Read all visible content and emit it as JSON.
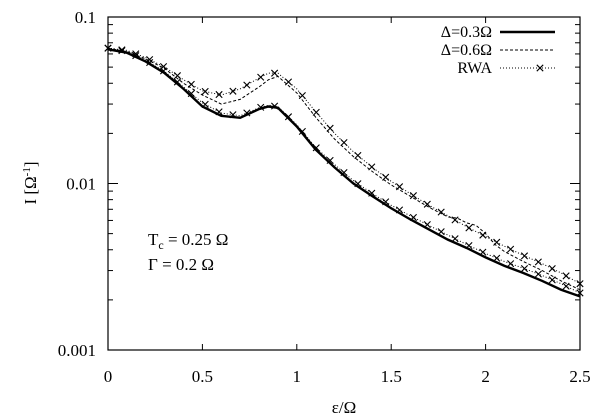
{
  "chart_data": {
    "type": "line",
    "xlabel": "ε/Ω",
    "ylabel_main": "I [Ω",
    "ylabel_sup": "-1",
    "ylabel_close": "]",
    "xlim": [
      0,
      2.5
    ],
    "ylim": [
      0.001,
      0.1
    ],
    "yscale": "log",
    "grid": false,
    "legend_position": "top-right",
    "x_ticks": [
      {
        "value": 0,
        "label": "0"
      },
      {
        "value": 0.5,
        "label": "0.5"
      },
      {
        "value": 1,
        "label": "1"
      },
      {
        "value": 1.5,
        "label": "1.5"
      },
      {
        "value": 2,
        "label": "2"
      },
      {
        "value": 2.5,
        "label": "2.5"
      }
    ],
    "y_ticks": [
      {
        "value": 0.001,
        "label": "0.001"
      },
      {
        "value": 0.01,
        "label": "0.01"
      },
      {
        "value": 0.1,
        "label": "0.1"
      }
    ],
    "annotations": [
      {
        "main": "T",
        "sub": "c",
        "rest": " = 0.25 Ω"
      },
      {
        "main": "Γ",
        "sub": "",
        "rest": " = 0.2 Ω"
      }
    ],
    "legend": [
      {
        "label": "Δ=0.3Ω",
        "style": "solid"
      },
      {
        "label": "Δ=0.6Ω",
        "style": "dashed"
      },
      {
        "label": "RWA",
        "style": "dotted-cross"
      }
    ],
    "series": [
      {
        "name": "Δ=0.3Ω",
        "style": "solid",
        "x": [
          0,
          0.1,
          0.2,
          0.3,
          0.4,
          0.5,
          0.6,
          0.7,
          0.8,
          0.85,
          0.9,
          1.0,
          1.1,
          1.2,
          1.3,
          1.4,
          1.5,
          1.6,
          1.7,
          1.8,
          1.9,
          2.0,
          2.1,
          2.2,
          2.3,
          2.4,
          2.5
        ],
        "y": [
          0.064,
          0.061,
          0.054,
          0.046,
          0.037,
          0.029,
          0.0255,
          0.0248,
          0.028,
          0.029,
          0.0285,
          0.022,
          0.016,
          0.0125,
          0.01,
          0.0084,
          0.0071,
          0.0061,
          0.0053,
          0.0046,
          0.0041,
          0.0036,
          0.0032,
          0.0029,
          0.0026,
          0.0023,
          0.0021
        ]
      },
      {
        "name": "Δ=0.3Ω RWA",
        "style": "dotted-cross",
        "x": [
          0,
          0.1,
          0.2,
          0.3,
          0.4,
          0.5,
          0.6,
          0.7,
          0.8,
          0.85,
          0.9,
          1.0,
          1.1,
          1.2,
          1.3,
          1.4,
          1.5,
          1.6,
          1.7,
          1.8,
          1.9,
          2.0,
          2.1,
          2.2,
          2.3,
          2.4,
          2.5
        ],
        "y": [
          0.065,
          0.062,
          0.055,
          0.047,
          0.038,
          0.0305,
          0.0265,
          0.0255,
          0.0285,
          0.0295,
          0.029,
          0.0225,
          0.0165,
          0.013,
          0.0104,
          0.0087,
          0.0074,
          0.0064,
          0.0056,
          0.0049,
          0.0043,
          0.0038,
          0.0034,
          0.0031,
          0.0028,
          0.0025,
          0.0022
        ]
      },
      {
        "name": "Δ=0.6Ω",
        "style": "dashed",
        "x": [
          0,
          0.1,
          0.2,
          0.3,
          0.4,
          0.5,
          0.6,
          0.7,
          0.8,
          0.85,
          0.9,
          1.0,
          1.1,
          1.2,
          1.3,
          1.4,
          1.5,
          1.6,
          1.7,
          1.8,
          1.85,
          1.9,
          1.95,
          2.0,
          2.05,
          2.1,
          2.2,
          2.3,
          2.4,
          2.5
        ],
        "y": [
          0.065,
          0.062,
          0.056,
          0.049,
          0.04,
          0.034,
          0.03,
          0.032,
          0.038,
          0.042,
          0.044,
          0.035,
          0.025,
          0.0185,
          0.0145,
          0.0118,
          0.0098,
          0.0084,
          0.0072,
          0.0063,
          0.0062,
          0.0058,
          0.0056,
          0.005,
          0.0043,
          0.0039,
          0.0034,
          0.003,
          0.0026,
          0.0023
        ]
      },
      {
        "name": "Δ=0.6Ω RWA",
        "style": "dotted-cross",
        "x": [
          0,
          0.1,
          0.2,
          0.3,
          0.4,
          0.5,
          0.6,
          0.7,
          0.8,
          0.85,
          0.9,
          1.0,
          1.1,
          1.2,
          1.3,
          1.4,
          1.5,
          1.6,
          1.7,
          1.8,
          1.9,
          2.0,
          2.1,
          2.2,
          2.3,
          2.4,
          2.5
        ],
        "y": [
          0.065,
          0.063,
          0.057,
          0.05,
          0.042,
          0.036,
          0.034,
          0.037,
          0.043,
          0.046,
          0.046,
          0.037,
          0.027,
          0.02,
          0.0155,
          0.0125,
          0.0103,
          0.0087,
          0.0074,
          0.0064,
          0.0055,
          0.0048,
          0.0042,
          0.0037,
          0.0033,
          0.0029,
          0.0025
        ]
      }
    ]
  }
}
